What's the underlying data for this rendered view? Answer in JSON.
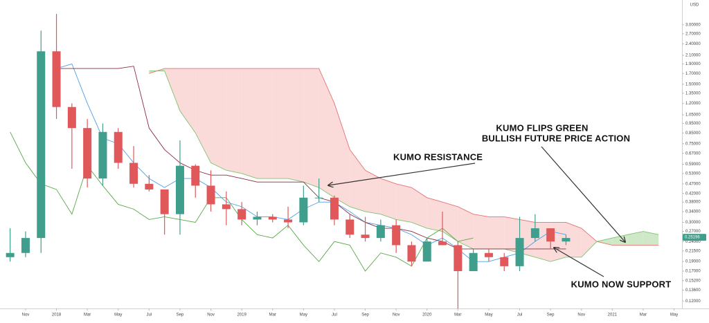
{
  "chart_data": {
    "type": "candlestick",
    "categories": [
      null,
      "Nov",
      null,
      "2018",
      null,
      "Mar",
      null,
      "May",
      null,
      "Jul",
      null,
      "Sep",
      null,
      "Nov",
      null,
      "2019",
      null,
      "Mar",
      null,
      "May",
      null,
      "Jul",
      null,
      "Sep",
      null,
      "Nov",
      null,
      "2020",
      null,
      "Mar",
      null,
      "May",
      null,
      "Jul",
      null,
      "Sep",
      null,
      "Nov",
      null,
      "2021",
      null,
      "Mar",
      null,
      "May"
    ],
    "open": [
      0.2,
      0.21,
      0.25,
      2.2,
      1.15,
      0.9,
      0.5,
      0.86,
      0.6,
      0.47,
      0.44,
      0.33,
      0.58,
      0.46,
      0.37,
      0.35,
      0.31,
      0.32,
      0.31,
      0.3,
      0.4,
      0.4,
      0.31,
      0.26,
      0.25,
      0.29,
      0.23,
      0.19,
      0.24,
      0.23,
      0.17,
      0.21,
      0.2,
      0.18,
      0.25,
      0.28,
      0.24,
      null,
      null,
      null,
      null,
      null,
      null,
      null
    ],
    "high": [
      0.28,
      0.27,
      2.8,
      3.4,
      1.2,
      1.0,
      0.95,
      0.9,
      0.73,
      0.52,
      0.44,
      0.78,
      0.59,
      0.55,
      0.43,
      0.38,
      0.34,
      0.33,
      0.36,
      0.46,
      0.5,
      0.41,
      0.33,
      0.32,
      0.31,
      0.31,
      0.24,
      0.25,
      0.34,
      0.24,
      0.22,
      0.22,
      0.21,
      0.32,
      0.33,
      0.28,
      0.26,
      null,
      null,
      null,
      null,
      null,
      null,
      null
    ],
    "low": [
      0.19,
      0.2,
      0.21,
      1.0,
      0.56,
      0.45,
      0.46,
      0.56,
      0.45,
      0.43,
      0.26,
      0.26,
      0.4,
      0.34,
      0.29,
      0.29,
      0.29,
      0.3,
      0.28,
      0.29,
      0.38,
      0.29,
      0.25,
      0.24,
      0.24,
      0.21,
      0.18,
      0.19,
      0.23,
      0.11,
      0.17,
      0.19,
      0.17,
      0.17,
      0.24,
      0.22,
      0.23,
      null,
      null,
      null,
      null,
      null,
      null,
      null
    ],
    "close": [
      0.21,
      0.25,
      2.2,
      1.15,
      0.9,
      0.5,
      0.86,
      0.6,
      0.47,
      0.44,
      0.33,
      0.58,
      0.46,
      0.37,
      0.35,
      0.31,
      0.32,
      0.31,
      0.3,
      0.4,
      0.4,
      0.31,
      0.26,
      0.25,
      0.29,
      0.23,
      0.19,
      0.24,
      0.23,
      0.17,
      0.21,
      0.2,
      0.18,
      0.25,
      0.28,
      0.24,
      0.25,
      null,
      null,
      null,
      null,
      null,
      null,
      null
    ],
    "up_color": "#3f9e8c",
    "down_color": "#e0585a",
    "lines": [
      {
        "color": "#4a9ee8",
        "values": [
          null,
          null,
          null,
          1.8,
          1.9,
          1.2,
          0.8,
          0.75,
          0.6,
          0.5,
          0.45,
          0.5,
          0.5,
          0.45,
          0.38,
          0.36,
          0.32,
          0.32,
          0.31,
          0.35,
          0.38,
          0.38,
          0.34,
          0.3,
          0.29,
          0.28,
          0.26,
          0.23,
          0.25,
          0.22,
          0.19,
          0.19,
          0.2,
          0.21,
          0.24,
          0.27,
          0.26,
          null,
          null,
          null,
          null,
          null,
          null,
          null
        ]
      },
      {
        "color": "#8c2a3c",
        "values": [
          null,
          null,
          null,
          1.8,
          1.8,
          1.8,
          1.8,
          1.8,
          1.85,
          0.9,
          0.7,
          0.6,
          0.55,
          0.52,
          0.52,
          0.5,
          0.48,
          0.48,
          0.48,
          0.48,
          0.4,
          0.38,
          0.33,
          0.3,
          0.28,
          0.28,
          0.27,
          0.25,
          0.24,
          0.22,
          0.22,
          0.22,
          0.22,
          0.22,
          0.22,
          0.22,
          0.22,
          null,
          null,
          null,
          null,
          null,
          null,
          null
        ]
      },
      {
        "color": "#5aa84a",
        "values": [
          0.86,
          0.6,
          0.47,
          0.44,
          0.33,
          0.58,
          0.46,
          0.37,
          0.35,
          0.31,
          0.32,
          0.31,
          0.3,
          0.4,
          0.4,
          0.31,
          0.26,
          0.25,
          0.29,
          0.23,
          0.19,
          0.24,
          0.23,
          0.17,
          0.21,
          0.2,
          0.18,
          0.25,
          0.28,
          0.24,
          0.25,
          null,
          null,
          null,
          null,
          null,
          null,
          null,
          null,
          null,
          null,
          null,
          null,
          null
        ]
      }
    ],
    "cloud": {
      "span_a": {
        "color": "#7cc46e",
        "values": [
          null,
          null,
          null,
          null,
          null,
          null,
          null,
          null,
          null,
          1.75,
          1.75,
          1.1,
          0.85,
          0.6,
          0.55,
          0.53,
          0.5,
          0.5,
          0.5,
          0.48,
          0.45,
          0.4,
          0.36,
          0.34,
          0.33,
          0.31,
          0.3,
          0.28,
          0.27,
          0.24,
          0.22,
          0.22,
          0.22,
          0.21,
          0.2,
          0.19,
          0.2,
          0.2,
          0.24,
          0.25,
          0.26,
          0.27,
          0.26,
          null
        ]
      },
      "span_b": {
        "color": "#e57373",
        "values": [
          null,
          null,
          null,
          null,
          null,
          null,
          null,
          null,
          null,
          1.7,
          1.8,
          1.8,
          1.8,
          1.8,
          1.8,
          1.8,
          1.8,
          1.8,
          1.8,
          1.8,
          1.8,
          1.2,
          0.7,
          0.55,
          0.5,
          0.47,
          0.45,
          0.4,
          0.38,
          0.36,
          0.33,
          0.32,
          0.32,
          0.31,
          0.3,
          0.3,
          0.3,
          0.28,
          0.24,
          0.23,
          0.23,
          0.23,
          0.23,
          null
        ]
      },
      "up_fill": "#cfe9c8",
      "down_fill": "#fbdada"
    },
    "ylim": [
      0.11,
      4.0
    ],
    "log_scale": true,
    "yticks": [
      {
        "value": 3.0,
        "label": "3.00000"
      },
      {
        "value": 2.7,
        "label": "2.70000"
      },
      {
        "value": 2.4,
        "label": "2.40000"
      },
      {
        "value": 2.1,
        "label": "2.10000"
      },
      {
        "value": 1.9,
        "label": "1.90000"
      },
      {
        "value": 1.7,
        "label": "1.70000"
      },
      {
        "value": 1.5,
        "label": "1.50000"
      },
      {
        "value": 1.35,
        "label": "1.35000"
      },
      {
        "value": 1.2,
        "label": "1.20000"
      },
      {
        "value": 1.05,
        "label": "1.05000"
      },
      {
        "value": 0.95,
        "label": "0.95000"
      },
      {
        "value": 0.85,
        "label": "0.85000"
      },
      {
        "value": 0.75,
        "label": "0.75000"
      },
      {
        "value": 0.67,
        "label": "0.67000"
      },
      {
        "value": 0.59,
        "label": "0.59000"
      },
      {
        "value": 0.53,
        "label": "0.53000"
      },
      {
        "value": 0.47,
        "label": "0.47000"
      },
      {
        "value": 0.42,
        "label": "0.42000"
      },
      {
        "value": 0.38,
        "label": "0.38000"
      },
      {
        "value": 0.34,
        "label": "0.34000"
      },
      {
        "value": 0.3,
        "label": "0.30000"
      },
      {
        "value": 0.27,
        "label": "0.27000"
      },
      {
        "value": 0.24,
        "label": "0.24000"
      },
      {
        "value": 0.215,
        "label": "0.21500"
      },
      {
        "value": 0.19,
        "label": "0.19000"
      },
      {
        "value": 0.17,
        "label": "0.17000"
      },
      {
        "value": 0.152,
        "label": "0.15200"
      },
      {
        "value": 0.136,
        "label": "0.13600"
      },
      {
        "value": 0.12,
        "label": "0.12000"
      }
    ],
    "currency": "USD",
    "last_price": 0.25196,
    "last_price_color": "#3f9e8c",
    "annotations": [
      "KUMO RESISTANCE",
      "KUMO FLIPS GREEN",
      "BULLISH FUTURE PRICE ACTION",
      "KUMO NOW SUPPORT"
    ]
  }
}
